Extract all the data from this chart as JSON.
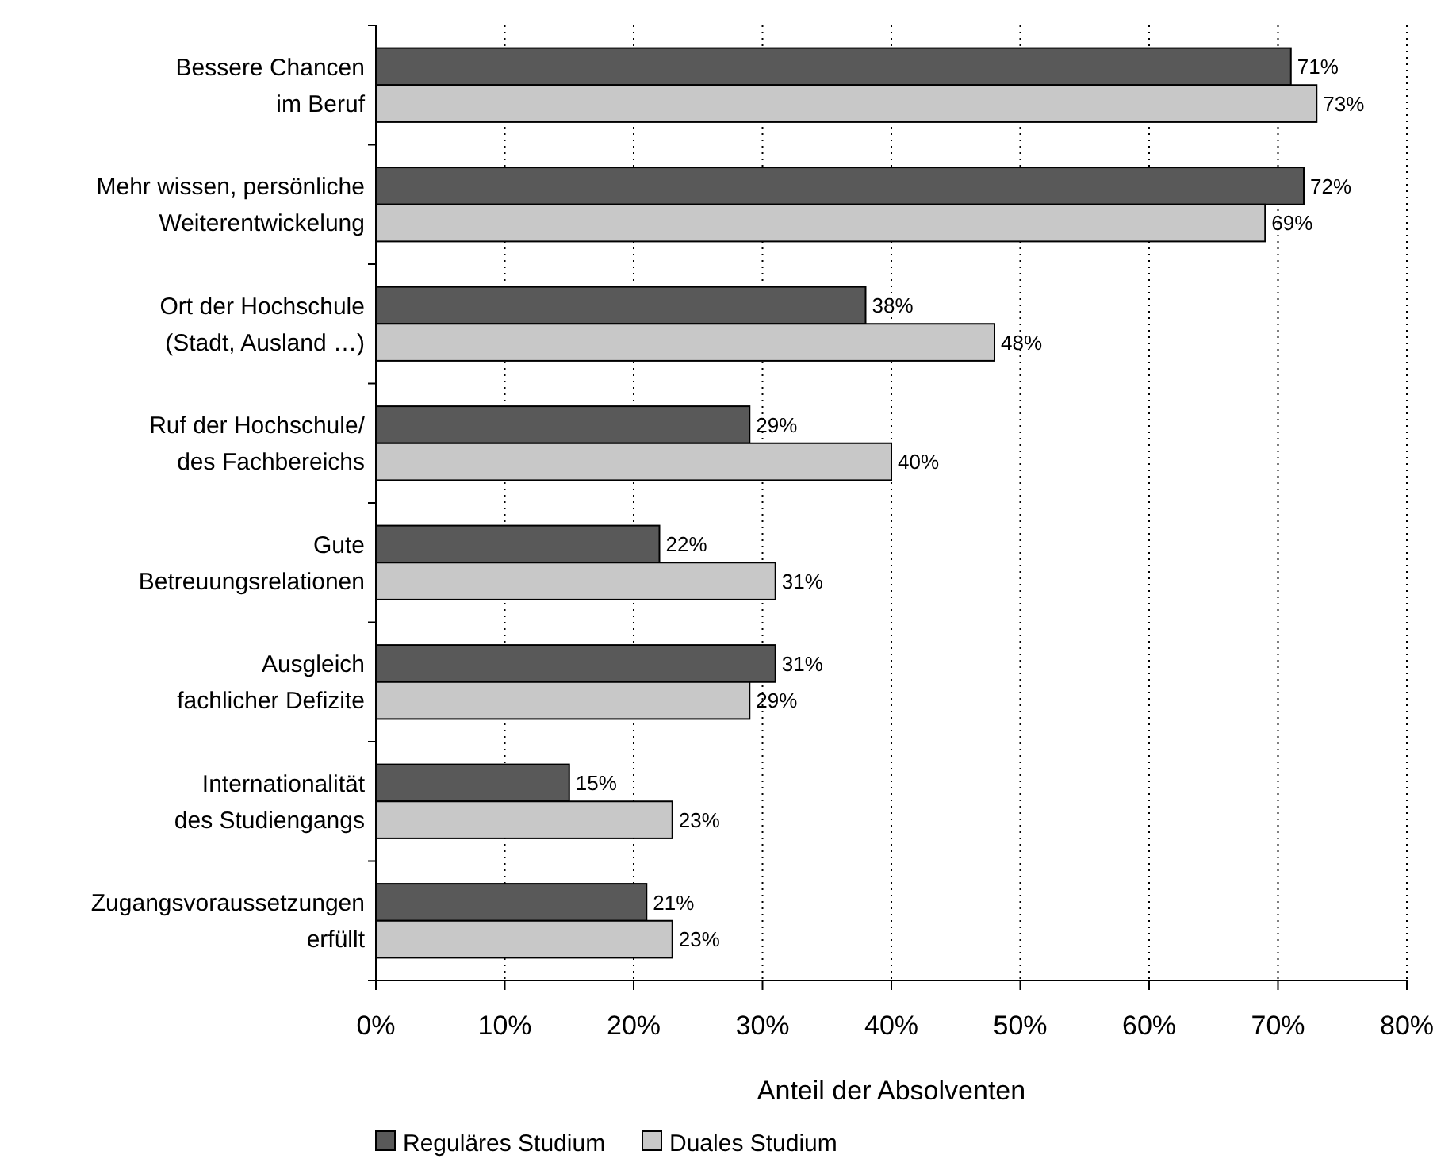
{
  "chart_data": {
    "type": "bar",
    "orientation": "horizontal",
    "categories": [
      "Bessere Chancen\nim Beruf",
      "Mehr wissen, persönliche\nWeiterentwickelung",
      "Ort der Hochschule\n(Stadt, Ausland …)",
      "Ruf der Hochschule/\ndes Fachbereichs",
      "Gute\nBetreuungsrelationen",
      "Ausgleich\nfachlicher Defizite",
      "Internationalität\ndes Studiengangs",
      "Zugangsvoraussetzungen\nerfüllt"
    ],
    "series": [
      {
        "name": "Reguläres Studium",
        "color": "#595959",
        "values": [
          71,
          72,
          38,
          29,
          22,
          31,
          15,
          21
        ],
        "value_labels": [
          "71%",
          "72%",
          "38%",
          "29%",
          "22%",
          "31%",
          "15%",
          "21%"
        ]
      },
      {
        "name": "Duales Studium",
        "color": "#c8c8c8",
        "values": [
          73,
          69,
          48,
          40,
          31,
          29,
          23,
          23
        ],
        "value_labels": [
          "73%",
          "69%",
          "48%",
          "40%",
          "31%",
          "29%",
          "23%",
          "23%"
        ]
      }
    ],
    "xlim": [
      0,
      80
    ],
    "xticks": [
      {
        "value": 0,
        "label": "0%"
      },
      {
        "value": 10,
        "label": "10%"
      },
      {
        "value": 20,
        "label": "20%"
      },
      {
        "value": 30,
        "label": "30%"
      },
      {
        "value": 40,
        "label": "40%"
      },
      {
        "value": 50,
        "label": "50%"
      },
      {
        "value": 60,
        "label": "60%"
      },
      {
        "value": 70,
        "label": "70%"
      },
      {
        "value": 80,
        "label": "80%"
      }
    ],
    "xlabel": "Anteil der Absolventen",
    "grid": "x",
    "legend": "bottom"
  }
}
